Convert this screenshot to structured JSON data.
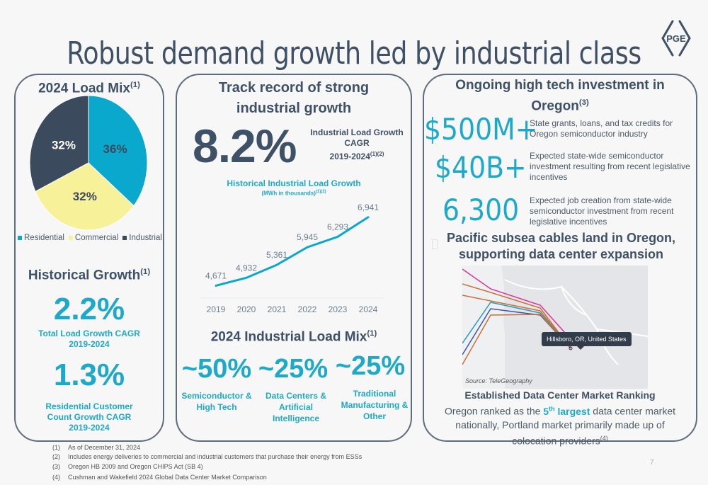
{
  "title": "Robust demand growth led by industrial class",
  "logo_text": "PGE",
  "load_mix": {
    "title": "2024 Load Mix",
    "title_note": "(1)",
    "legend": [
      {
        "label": "Residential",
        "color": "#0aa8cc"
      },
      {
        "label": "Commercial",
        "color": "#f7f19a"
      },
      {
        "label": "Industrial",
        "color": "#3b4a5c"
      }
    ]
  },
  "chart_data": [
    {
      "type": "pie",
      "title": "2024 Load Mix",
      "categories": [
        "Residential",
        "Commercial",
        "Industrial"
      ],
      "values": [
        36,
        32,
        32
      ],
      "labels": [
        "36%",
        "32%",
        "32%"
      ],
      "colors": [
        "#0aa8cc",
        "#f7f19a",
        "#3b4a5c"
      ],
      "legend": "bottom"
    },
    {
      "type": "line",
      "title": "Historical Industrial Load Growth",
      "subtitle": "(MWh in thousands)",
      "subtitle_note": "(1)(2)",
      "categories": [
        "2019",
        "2020",
        "2021",
        "2022",
        "2023",
        "2024"
      ],
      "series": [
        {
          "name": "Industrial Load",
          "values": [
            4671,
            4932,
            5361,
            5945,
            6293,
            6941
          ],
          "color": "#0aa8cc"
        }
      ],
      "data_labels": [
        "4,671",
        "4,932",
        "5,361",
        "5,945",
        "6,293",
        "6,941"
      ],
      "grid": false
    }
  ],
  "historical_growth": {
    "title": "Historical Growth",
    "title_note": "(1)",
    "stats": [
      {
        "value": "2.2%",
        "label_lines": [
          "Total Load Growth CAGR",
          "2019-2024"
        ]
      },
      {
        "value": "1.3%",
        "label_lines": [
          "Residential Customer",
          "Count Growth CAGR",
          "2019-2024"
        ]
      }
    ]
  },
  "track_record": {
    "title_lines": [
      "Track record of strong",
      "industrial growth"
    ],
    "big_value": "8.2%",
    "desc_lines": [
      "Industrial Load Growth",
      "CAGR",
      "2019-2024"
    ],
    "desc_note": "(1)(2)",
    "chart_title": "Historical Industrial Load Growth",
    "chart_subtitle": "(MWh in thousands)",
    "chart_subtitle_note": "(1)(2)"
  },
  "industrial_mix": {
    "title": "2024 Industrial Load Mix",
    "title_note": "(1)",
    "items": [
      {
        "value": "~50%",
        "label_lines": [
          "Semiconductor &",
          "High Tech"
        ]
      },
      {
        "value": "~25%",
        "label_lines": [
          "Data Centers &",
          "Artificial",
          "Intelligence"
        ]
      },
      {
        "value": "~25%",
        "label_lines": [
          "Traditional",
          "Manufacturing &",
          "Other"
        ]
      }
    ]
  },
  "investment": {
    "title_lines": [
      "Ongoing high tech investment in",
      "Oregon"
    ],
    "title_note": "(3)",
    "items": [
      {
        "value": "$500M+",
        "desc_lines": [
          "State grants, loans, and tax credits for",
          "Oregon semiconductor industry"
        ]
      },
      {
        "value": "$40B+",
        "desc_lines": [
          "Expected state-wide semiconductor",
          "investment resulting from recent legislative",
          "incentives"
        ]
      },
      {
        "value": "6,300",
        "desc_lines": [
          "Expected job creation from state-wide",
          "semiconductor investment from recent",
          "legislative incentives"
        ]
      }
    ]
  },
  "cables": {
    "title_lines": [
      "Pacific subsea cables land in Oregon,",
      "supporting data center expansion"
    ],
    "tooltip": "Hillsboro, OR, United States",
    "source": "Source: TeleGeography"
  },
  "ranking": {
    "title": "Established Data Center Market Ranking",
    "text_before": "Oregon ranked as the ",
    "highlight_num": "5",
    "highlight_sup": "th",
    "highlight_word": " largest",
    "text_after_line1": " data center market",
    "line2": "nationally, Portland market primarily made up of",
    "line3": "colocation providers",
    "line3_note": "(4)"
  },
  "footnotes": [
    {
      "n": "(1)",
      "text": "As of December 31, 2024"
    },
    {
      "n": "(2)",
      "text": "Includes energy deliveries to commercial and industrial customers that purchase their energy from ESSs"
    },
    {
      "n": "(3)",
      "text": "Oregon HB 2009 and Oregon CHIPS Act (SB 4)"
    },
    {
      "n": "(4)",
      "text": "Cushman and Wakefield 2024 Global Data Center Market Comparison"
    }
  ],
  "page_number": "7"
}
